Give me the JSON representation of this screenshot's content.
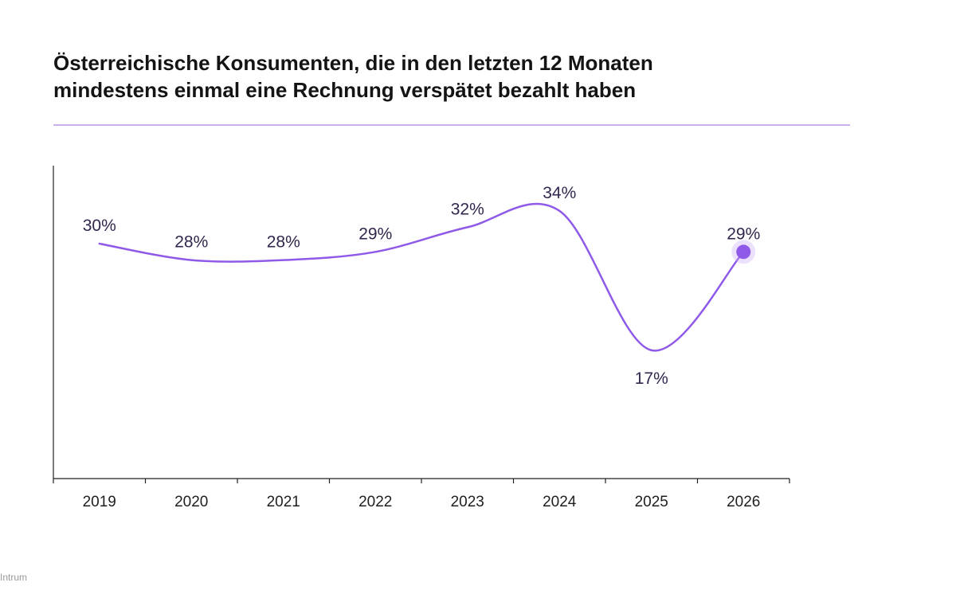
{
  "title": {
    "line1": "Österreichische Konsumenten, die in den letzten 12 Monaten",
    "line2": "mindestens einmal eine Rechnung verspätet bezahlt haben"
  },
  "source": "Intrum",
  "colors": {
    "line": "#8f5ae8",
    "highlight": "#8f5ae8",
    "halo": "#c9a9f5",
    "divider": "#c9b2ee",
    "axis": "#222222",
    "label": "#33264d"
  },
  "chart_data": {
    "type": "line",
    "categories": [
      "2019",
      "2020",
      "2021",
      "2022",
      "2023",
      "2024",
      "2025",
      "2026"
    ],
    "values": [
      30,
      28,
      28,
      29,
      32,
      34,
      17,
      29
    ],
    "value_labels": [
      "30%",
      "28%",
      "28%",
      "29%",
      "32%",
      "34%",
      "17%",
      "29%"
    ],
    "title": "Österreichische Konsumenten, die in den letzten 12 Monaten mindestens einmal eine Rechnung verspätet bezahlt haben",
    "xlabel": "",
    "ylabel": "",
    "grid": false,
    "highlight_last_point": true
  }
}
